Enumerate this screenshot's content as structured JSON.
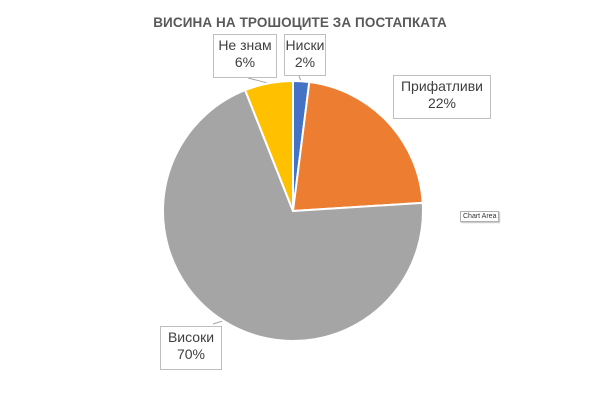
{
  "chart_data": {
    "type": "pie",
    "title": "ВИСИНА НА ТРОШОЦИТЕ ЗА ПОСТАПКАТА",
    "categories": [
      "Ниски",
      "Прифатливи",
      "Високи",
      "Не знам"
    ],
    "values": [
      2,
      22,
      70,
      6
    ],
    "value_labels": [
      "2%",
      "22%",
      "70%",
      "6%"
    ],
    "colors": [
      "#4472c4",
      "#ed7d31",
      "#a5a5a5",
      "#ffc000"
    ],
    "start": "12 o'clock, clockwise",
    "legend": "none"
  },
  "tooltip": "Chart Area"
}
